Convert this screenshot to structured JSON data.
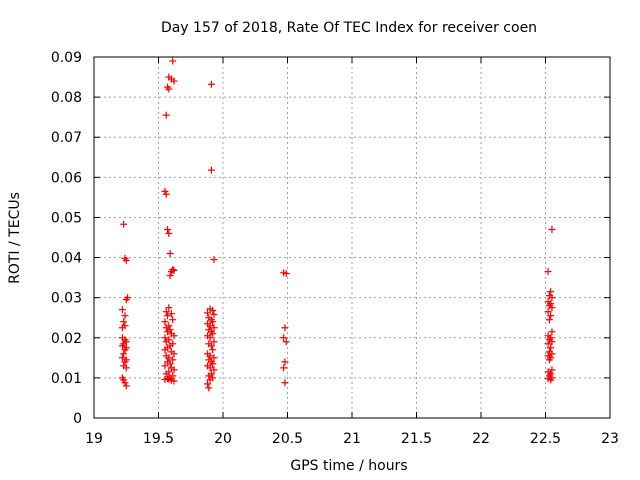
{
  "chart_data": {
    "type": "scatter",
    "title": "Day 157 of 2018, Rate Of TEC Index for receiver coen",
    "xlabel": "GPS time / hours",
    "ylabel": "ROTI / TECUs",
    "xlim": [
      19,
      23
    ],
    "ylim": [
      0,
      0.09
    ],
    "grid": true,
    "marker": "+",
    "color": "#ff0000",
    "x_ticks": [
      "19",
      "19.5",
      "20",
      "20.5",
      "21",
      "21.5",
      "22",
      "22.5",
      "23"
    ],
    "y_ticks": [
      "0",
      "0.01",
      "0.02",
      "0.03",
      "0.04",
      "0.05",
      "0.06",
      "0.07",
      "0.08",
      "0.09"
    ],
    "series": [
      {
        "name": "ROTI",
        "points": [
          [
            19.23,
            0.0483
          ],
          [
            19.24,
            0.0398
          ],
          [
            19.25,
            0.0393
          ],
          [
            19.26,
            0.03
          ],
          [
            19.25,
            0.0295
          ],
          [
            19.22,
            0.027
          ],
          [
            19.24,
            0.0255
          ],
          [
            19.23,
            0.024
          ],
          [
            19.22,
            0.0225
          ],
          [
            19.24,
            0.023
          ],
          [
            19.22,
            0.02
          ],
          [
            19.24,
            0.0195
          ],
          [
            19.25,
            0.019
          ],
          [
            19.23,
            0.0185
          ],
          [
            19.22,
            0.018
          ],
          [
            19.25,
            0.0175
          ],
          [
            19.24,
            0.017
          ],
          [
            19.23,
            0.016
          ],
          [
            19.22,
            0.015
          ],
          [
            19.25,
            0.0145
          ],
          [
            19.24,
            0.014
          ],
          [
            19.23,
            0.013
          ],
          [
            19.25,
            0.0125
          ],
          [
            19.22,
            0.01
          ],
          [
            19.23,
            0.0095
          ],
          [
            19.24,
            0.0088
          ],
          [
            19.25,
            0.008
          ],
          [
            19.61,
            0.089
          ],
          [
            19.58,
            0.085
          ],
          [
            19.6,
            0.0845
          ],
          [
            19.62,
            0.084
          ],
          [
            19.57,
            0.0825
          ],
          [
            19.58,
            0.082
          ],
          [
            19.56,
            0.0755
          ],
          [
            19.55,
            0.0565
          ],
          [
            19.56,
            0.0558
          ],
          [
            19.57,
            0.047
          ],
          [
            19.58,
            0.046
          ],
          [
            19.59,
            0.041
          ],
          [
            19.61,
            0.037
          ],
          [
            19.6,
            0.0365
          ],
          [
            19.62,
            0.0368
          ],
          [
            19.59,
            0.0355
          ],
          [
            19.58,
            0.0275
          ],
          [
            19.56,
            0.0265
          ],
          [
            19.6,
            0.026
          ],
          [
            19.57,
            0.0255
          ],
          [
            19.61,
            0.0245
          ],
          [
            19.55,
            0.024
          ],
          [
            19.58,
            0.023
          ],
          [
            19.56,
            0.0225
          ],
          [
            19.59,
            0.022
          ],
          [
            19.57,
            0.0215
          ],
          [
            19.6,
            0.021
          ],
          [
            19.62,
            0.0205
          ],
          [
            19.55,
            0.02
          ],
          [
            19.58,
            0.0195
          ],
          [
            19.56,
            0.019
          ],
          [
            19.61,
            0.0185
          ],
          [
            19.59,
            0.018
          ],
          [
            19.57,
            0.0175
          ],
          [
            19.55,
            0.017
          ],
          [
            19.6,
            0.0165
          ],
          [
            19.62,
            0.016
          ],
          [
            19.56,
            0.0155
          ],
          [
            19.58,
            0.015
          ],
          [
            19.61,
            0.0145
          ],
          [
            19.57,
            0.014
          ],
          [
            19.59,
            0.0135
          ],
          [
            19.55,
            0.013
          ],
          [
            19.6,
            0.0125
          ],
          [
            19.62,
            0.012
          ],
          [
            19.58,
            0.0115
          ],
          [
            19.56,
            0.011
          ],
          [
            19.61,
            0.0105
          ],
          [
            19.59,
            0.01
          ],
          [
            19.57,
            0.0098
          ],
          [
            19.55,
            0.0096
          ],
          [
            19.6,
            0.0094
          ],
          [
            19.62,
            0.0092
          ],
          [
            19.58,
            0.0097
          ],
          [
            19.91,
            0.0832
          ],
          [
            19.91,
            0.0618
          ],
          [
            19.93,
            0.0395
          ],
          [
            19.9,
            0.0272
          ],
          [
            19.92,
            0.0268
          ],
          [
            19.88,
            0.0262
          ],
          [
            19.93,
            0.0258
          ],
          [
            19.89,
            0.025
          ],
          [
            19.91,
            0.0245
          ],
          [
            19.92,
            0.024
          ],
          [
            19.88,
            0.0235
          ],
          [
            19.9,
            0.023
          ],
          [
            19.93,
            0.0225
          ],
          [
            19.89,
            0.022
          ],
          [
            19.91,
            0.0215
          ],
          [
            19.92,
            0.021
          ],
          [
            19.88,
            0.0205
          ],
          [
            19.9,
            0.02
          ],
          [
            19.93,
            0.019
          ],
          [
            19.89,
            0.0185
          ],
          [
            19.91,
            0.018
          ],
          [
            19.92,
            0.017
          ],
          [
            19.88,
            0.016
          ],
          [
            19.9,
            0.0155
          ],
          [
            19.93,
            0.015
          ],
          [
            19.89,
            0.0145
          ],
          [
            19.91,
            0.014
          ],
          [
            19.92,
            0.0135
          ],
          [
            19.88,
            0.013
          ],
          [
            19.9,
            0.0125
          ],
          [
            19.93,
            0.012
          ],
          [
            19.91,
            0.011
          ],
          [
            19.89,
            0.0105
          ],
          [
            19.92,
            0.01
          ],
          [
            19.9,
            0.0095
          ],
          [
            19.88,
            0.0085
          ],
          [
            19.89,
            0.0075
          ],
          [
            20.47,
            0.0362
          ],
          [
            20.49,
            0.036
          ],
          [
            20.48,
            0.0225
          ],
          [
            20.47,
            0.02
          ],
          [
            20.49,
            0.019
          ],
          [
            20.48,
            0.014
          ],
          [
            20.47,
            0.0125
          ],
          [
            20.48,
            0.0088
          ],
          [
            22.55,
            0.047
          ],
          [
            22.52,
            0.0365
          ],
          [
            22.54,
            0.0315
          ],
          [
            22.53,
            0.0305
          ],
          [
            22.55,
            0.03
          ],
          [
            22.52,
            0.029
          ],
          [
            22.54,
            0.0285
          ],
          [
            22.53,
            0.028
          ],
          [
            22.55,
            0.0275
          ],
          [
            22.52,
            0.0265
          ],
          [
            22.54,
            0.0255
          ],
          [
            22.53,
            0.0245
          ],
          [
            22.55,
            0.0215
          ],
          [
            22.52,
            0.0205
          ],
          [
            22.54,
            0.02
          ],
          [
            22.53,
            0.0195
          ],
          [
            22.55,
            0.019
          ],
          [
            22.52,
            0.0185
          ],
          [
            22.54,
            0.0175
          ],
          [
            22.53,
            0.0165
          ],
          [
            22.55,
            0.016
          ],
          [
            22.52,
            0.0155
          ],
          [
            22.54,
            0.015
          ],
          [
            22.53,
            0.0145
          ],
          [
            22.55,
            0.012
          ],
          [
            22.52,
            0.0115
          ],
          [
            22.54,
            0.011
          ],
          [
            22.53,
            0.0105
          ],
          [
            22.55,
            0.01
          ],
          [
            22.52,
            0.0098
          ],
          [
            22.54,
            0.0095
          ]
        ]
      }
    ]
  }
}
